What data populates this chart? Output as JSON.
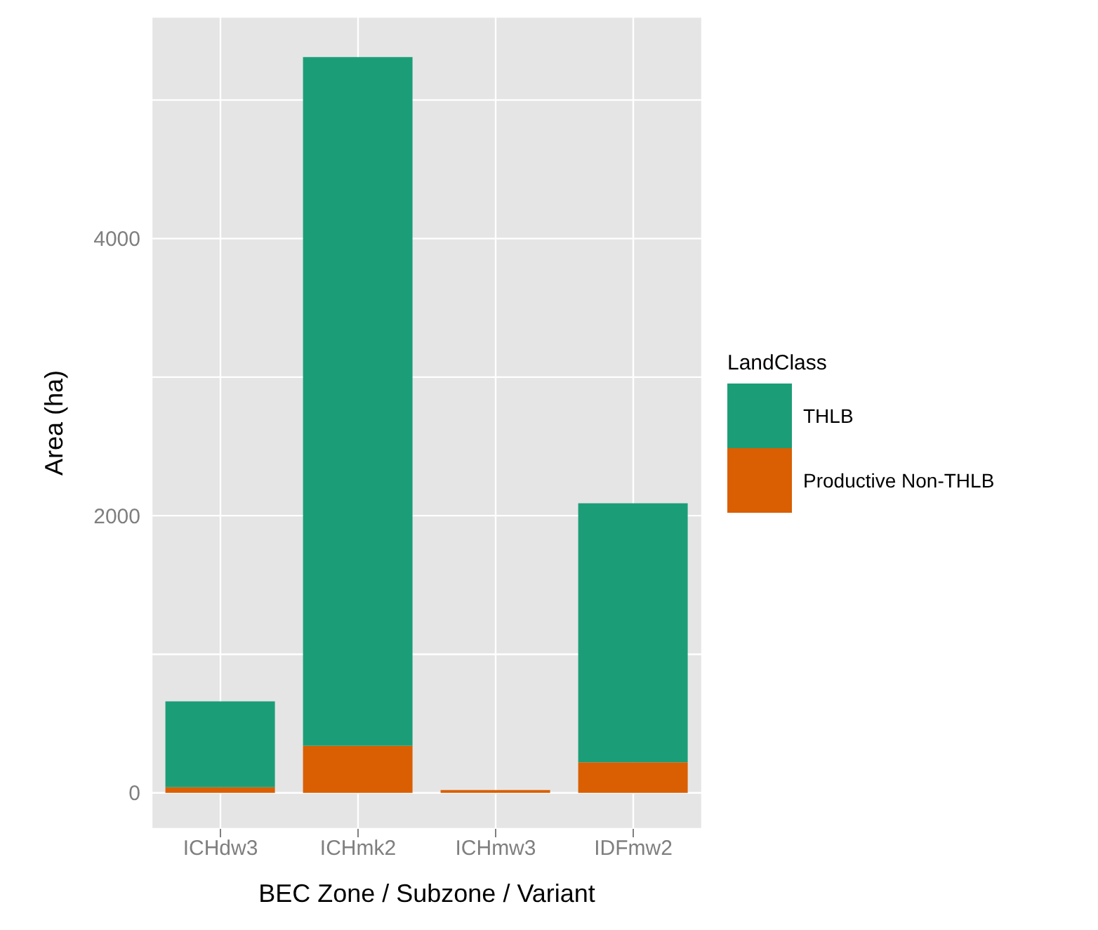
{
  "chart_data": {
    "type": "bar",
    "stacked": true,
    "xlabel": "BEC Zone / Subzone / Variant",
    "ylabel": "Area (ha)",
    "legend_title": "LandClass",
    "categories": [
      "ICHdw3",
      "ICHmk2",
      "ICHmw3",
      "IDFmw2"
    ],
    "series": [
      {
        "name": "Productive Non-THLB",
        "color": "#d95f02",
        "values": [
          40,
          340,
          20,
          220
        ]
      },
      {
        "name": "THLB",
        "color": "#1b9e77",
        "values": [
          620,
          4970,
          0,
          1870
        ]
      }
    ],
    "ylim": [
      -260,
      5600
    ],
    "yticks": [
      0,
      {
        "value": 1000,
        "label": null
      },
      2000,
      {
        "value": 3000,
        "label": null
      },
      4000,
      {
        "value": 5000,
        "label": null
      }
    ],
    "grid": true,
    "legend": "right"
  }
}
